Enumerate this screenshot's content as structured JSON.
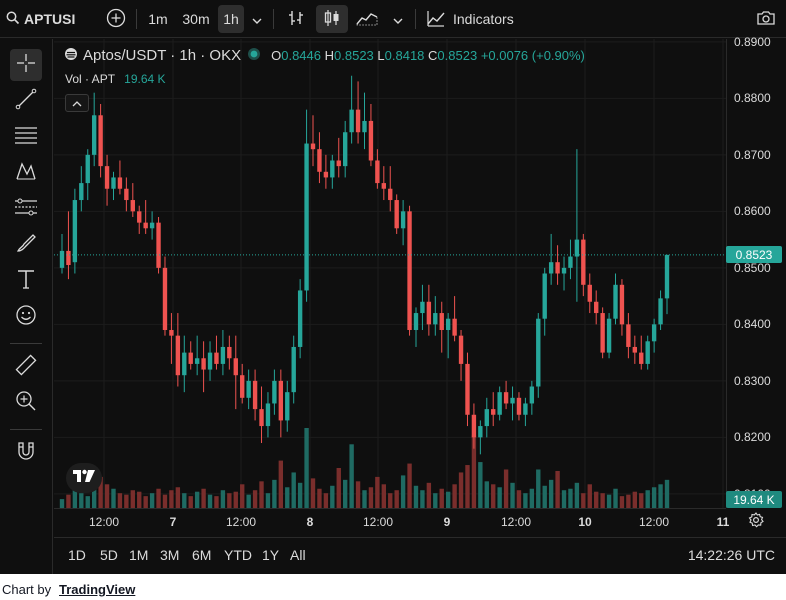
{
  "toolbar": {
    "symbol": "APTUSI",
    "intervals": [
      "1m",
      "30m",
      "1h"
    ],
    "active_interval": "1h",
    "indicators_label": "Indicators"
  },
  "legend": {
    "title": "Aptos/USDT · 1h · OKX",
    "o_label": "O",
    "o_value": "0.8446",
    "h_label": "H",
    "h_value": "0.8523",
    "l_label": "L",
    "l_value": "0.8418",
    "c_label": "C",
    "c_value": "0.8523",
    "change": "+0.0076 (+0.90%)",
    "vol_label": "Vol · APT",
    "vol_value": "19.64 K"
  },
  "price_axis": {
    "ticks": [
      "0.8900",
      "0.8800",
      "0.8700",
      "0.8600",
      "0.8500",
      "0.8400",
      "0.8300",
      "0.8200",
      "0.8100"
    ],
    "current_price": "0.8523",
    "current_volume": "19.64 K"
  },
  "time_axis": {
    "ticks": [
      "12:00",
      "7",
      "12:00",
      "8",
      "12:00",
      "9",
      "12:00",
      "10",
      "12:00",
      "11"
    ]
  },
  "ranges": [
    "1D",
    "5D",
    "1M",
    "3M",
    "6M",
    "YTD",
    "1Y",
    "All"
  ],
  "clock": "14:22:26 UTC",
  "footer": {
    "prefix": "Chart by",
    "link": "TradingView"
  },
  "colors": {
    "up": "#26a69a",
    "down": "#ef5350",
    "up_vol": "#1f6b63",
    "down_vol": "#7a2e2c",
    "background": "#0f0f0f"
  },
  "chart_data": {
    "type": "candlestick",
    "ylim": [
      0.8075,
      0.8905
    ],
    "candles": [
      [
        0.85,
        0.856,
        0.849,
        0.853
      ],
      [
        0.853,
        0.86,
        0.848,
        0.8505
      ],
      [
        0.851,
        0.864,
        0.849,
        0.862
      ],
      [
        0.862,
        0.868,
        0.86,
        0.865
      ],
      [
        0.865,
        0.871,
        0.862,
        0.87
      ],
      [
        0.87,
        0.881,
        0.868,
        0.877
      ],
      [
        0.877,
        0.879,
        0.866,
        0.868
      ],
      [
        0.868,
        0.87,
        0.861,
        0.864
      ],
      [
        0.864,
        0.867,
        0.862,
        0.866
      ],
      [
        0.866,
        0.869,
        0.863,
        0.864
      ],
      [
        0.864,
        0.866,
        0.86,
        0.862
      ],
      [
        0.862,
        0.865,
        0.859,
        0.86
      ],
      [
        0.86,
        0.861,
        0.856,
        0.858
      ],
      [
        0.858,
        0.862,
        0.856,
        0.857
      ],
      [
        0.857,
        0.86,
        0.855,
        0.858
      ],
      [
        0.858,
        0.859,
        0.849,
        0.85
      ],
      [
        0.85,
        0.852,
        0.838,
        0.839
      ],
      [
        0.839,
        0.842,
        0.833,
        0.838
      ],
      [
        0.838,
        0.842,
        0.829,
        0.831
      ],
      [
        0.831,
        0.838,
        0.828,
        0.835
      ],
      [
        0.835,
        0.837,
        0.832,
        0.833
      ],
      [
        0.833,
        0.838,
        0.831,
        0.834
      ],
      [
        0.834,
        0.837,
        0.828,
        0.832
      ],
      [
        0.832,
        0.837,
        0.83,
        0.835
      ],
      [
        0.835,
        0.838,
        0.832,
        0.833
      ],
      [
        0.833,
        0.839,
        0.831,
        0.836
      ],
      [
        0.836,
        0.838,
        0.832,
        0.834
      ],
      [
        0.834,
        0.838,
        0.825,
        0.831
      ],
      [
        0.831,
        0.833,
        0.826,
        0.827
      ],
      [
        0.827,
        0.832,
        0.825,
        0.83
      ],
      [
        0.83,
        0.832,
        0.823,
        0.825
      ],
      [
        0.825,
        0.829,
        0.819,
        0.822
      ],
      [
        0.822,
        0.828,
        0.82,
        0.826
      ],
      [
        0.826,
        0.832,
        0.824,
        0.83
      ],
      [
        0.83,
        0.832,
        0.82,
        0.823
      ],
      [
        0.823,
        0.83,
        0.821,
        0.828
      ],
      [
        0.828,
        0.838,
        0.826,
        0.836
      ],
      [
        0.836,
        0.848,
        0.834,
        0.846
      ],
      [
        0.846,
        0.878,
        0.844,
        0.872
      ],
      [
        0.872,
        0.877,
        0.868,
        0.871
      ],
      [
        0.871,
        0.874,
        0.865,
        0.867
      ],
      [
        0.867,
        0.87,
        0.864,
        0.866
      ],
      [
        0.866,
        0.87,
        0.864,
        0.869
      ],
      [
        0.869,
        0.873,
        0.866,
        0.868
      ],
      [
        0.868,
        0.876,
        0.866,
        0.874
      ],
      [
        0.874,
        0.884,
        0.872,
        0.878
      ],
      [
        0.878,
        0.883,
        0.872,
        0.874
      ],
      [
        0.874,
        0.881,
        0.871,
        0.876
      ],
      [
        0.876,
        0.879,
        0.868,
        0.869
      ],
      [
        0.869,
        0.871,
        0.864,
        0.865
      ],
      [
        0.865,
        0.868,
        0.862,
        0.864
      ],
      [
        0.864,
        0.868,
        0.86,
        0.862
      ],
      [
        0.862,
        0.863,
        0.856,
        0.857
      ],
      [
        0.857,
        0.862,
        0.854,
        0.86
      ],
      [
        0.86,
        0.861,
        0.838,
        0.839
      ],
      [
        0.839,
        0.843,
        0.836,
        0.842
      ],
      [
        0.842,
        0.847,
        0.839,
        0.844
      ],
      [
        0.844,
        0.847,
        0.838,
        0.84
      ],
      [
        0.84,
        0.845,
        0.838,
        0.842
      ],
      [
        0.842,
        0.844,
        0.835,
        0.839
      ],
      [
        0.839,
        0.842,
        0.834,
        0.841
      ],
      [
        0.841,
        0.845,
        0.837,
        0.838
      ],
      [
        0.838,
        0.839,
        0.83,
        0.833
      ],
      [
        0.833,
        0.835,
        0.822,
        0.824
      ],
      [
        0.824,
        0.826,
        0.818,
        0.82
      ],
      [
        0.82,
        0.823,
        0.817,
        0.822
      ],
      [
        0.822,
        0.827,
        0.82,
        0.825
      ],
      [
        0.825,
        0.828,
        0.822,
        0.824
      ],
      [
        0.824,
        0.829,
        0.823,
        0.828
      ],
      [
        0.828,
        0.83,
        0.825,
        0.826
      ],
      [
        0.826,
        0.829,
        0.823,
        0.827
      ],
      [
        0.827,
        0.828,
        0.823,
        0.824
      ],
      [
        0.824,
        0.827,
        0.822,
        0.826
      ],
      [
        0.826,
        0.83,
        0.824,
        0.829
      ],
      [
        0.829,
        0.842,
        0.827,
        0.841
      ],
      [
        0.841,
        0.85,
        0.838,
        0.849
      ],
      [
        0.849,
        0.856,
        0.847,
        0.851
      ],
      [
        0.851,
        0.854,
        0.847,
        0.849
      ],
      [
        0.849,
        0.852,
        0.846,
        0.85
      ],
      [
        0.85,
        0.855,
        0.848,
        0.852
      ],
      [
        0.852,
        0.871,
        0.844,
        0.855
      ],
      [
        0.855,
        0.856,
        0.845,
        0.847
      ],
      [
        0.847,
        0.849,
        0.842,
        0.844
      ],
      [
        0.844,
        0.846,
        0.84,
        0.842
      ],
      [
        0.842,
        0.843,
        0.834,
        0.835
      ],
      [
        0.835,
        0.842,
        0.834,
        0.841
      ],
      [
        0.841,
        0.849,
        0.84,
        0.847
      ],
      [
        0.847,
        0.848,
        0.838,
        0.84
      ],
      [
        0.84,
        0.842,
        0.834,
        0.836
      ],
      [
        0.836,
        0.838,
        0.833,
        0.835
      ],
      [
        0.835,
        0.838,
        0.832,
        0.833
      ],
      [
        0.833,
        0.838,
        0.832,
        0.837
      ],
      [
        0.837,
        0.841,
        0.835,
        0.84
      ],
      [
        0.84,
        0.846,
        0.839,
        0.8446
      ],
      [
        0.8446,
        0.8523,
        0.8418,
        0.8523
      ]
    ],
    "volume": [
      0.6,
      0.9,
      1.2,
      1.0,
      0.8,
      1.4,
      2.1,
      1.6,
      1.3,
      1.0,
      0.9,
      1.2,
      1.1,
      0.8,
      1.0,
      1.3,
      0.9,
      1.2,
      1.4,
      1.0,
      0.8,
      1.1,
      1.3,
      0.9,
      0.8,
      1.2,
      1.0,
      1.1,
      1.6,
      0.9,
      1.2,
      1.8,
      1.0,
      1.9,
      3.2,
      1.4,
      2.4,
      1.7,
      5.4,
      2.0,
      1.3,
      1.0,
      1.5,
      2.7,
      1.9,
      4.3,
      1.8,
      1.2,
      1.4,
      2.1,
      1.6,
      1.0,
      1.2,
      2.2,
      3.0,
      1.5,
      1.2,
      1.7,
      1.0,
      1.3,
      1.1,
      1.6,
      2.4,
      2.9,
      4.9,
      3.1,
      1.8,
      1.6,
      1.4,
      2.6,
      1.7,
      1.2,
      1.0,
      1.3,
      2.6,
      1.5,
      1.9,
      2.5,
      1.2,
      1.3,
      1.7,
      1.0,
      1.6,
      1.1,
      1.0,
      0.9,
      1.3,
      0.8,
      0.9,
      1.1,
      1.0,
      1.2,
      1.4,
      1.6,
      1.9
    ]
  }
}
